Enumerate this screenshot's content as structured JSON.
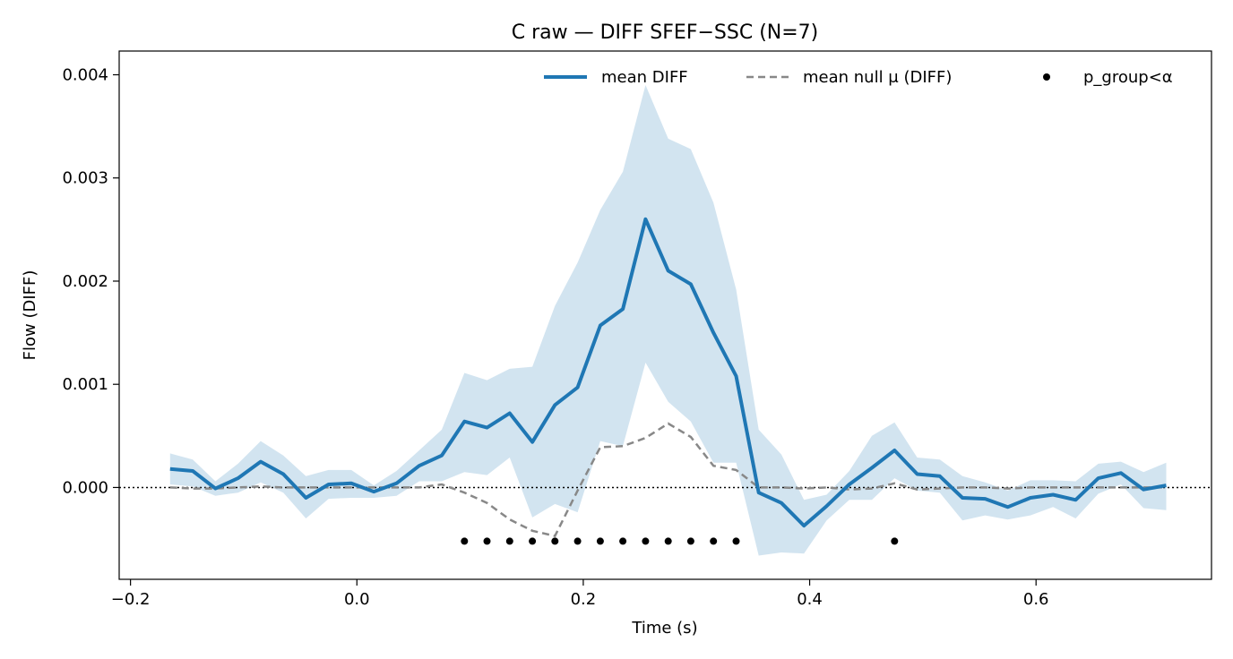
{
  "chart_data": {
    "type": "line",
    "title": "C raw — DIFF SFEF−SSC (N=7)",
    "xlabel": "Time (s)",
    "ylabel": "Flow (DIFF)",
    "xlim": [
      -0.21,
      0.755
    ],
    "ylim": [
      -0.00089,
      0.00423
    ],
    "x_ticks": [
      -0.2,
      0.0,
      0.2,
      0.4,
      0.6
    ],
    "x_tick_labels": [
      "−0.2",
      "0.0",
      "0.2",
      "0.4",
      "0.6"
    ],
    "y_ticks": [
      0.0,
      0.001,
      0.002,
      0.003,
      0.004
    ],
    "y_tick_labels": [
      "0.000",
      "0.001",
      "0.002",
      "0.003",
      "0.004"
    ],
    "grid": false,
    "legend_position": "top-right",
    "zero_reference_line": 0,
    "colors": {
      "mean": "#1f77b4",
      "band": "#1f77b4",
      "null": "#888888",
      "dots": "#000000"
    },
    "x": [
      -0.165,
      -0.145,
      -0.125,
      -0.105,
      -0.085,
      -0.065,
      -0.045,
      -0.025,
      -0.005,
      0.015,
      0.035,
      0.055,
      0.075,
      0.095,
      0.115,
      0.135,
      0.155,
      0.175,
      0.195,
      0.215,
      0.235,
      0.255,
      0.275,
      0.295,
      0.315,
      0.335,
      0.355,
      0.375,
      0.395,
      0.415,
      0.435,
      0.455,
      0.475,
      0.495,
      0.515,
      0.535,
      0.555,
      0.575,
      0.595,
      0.615,
      0.635,
      0.655,
      0.675,
      0.695,
      0.715
    ],
    "series": [
      {
        "name": "mean DIFF",
        "style": "solid",
        "values": [
          0.00018,
          0.00016,
          -1e-05,
          9e-05,
          0.00025,
          0.00013,
          -0.0001,
          3e-05,
          4e-05,
          -4e-05,
          4e-05,
          0.00021,
          0.00031,
          0.00064,
          0.00058,
          0.00072,
          0.00044,
          0.0008,
          0.00097,
          0.00157,
          0.00173,
          0.0026,
          0.0021,
          0.00197,
          0.0015,
          0.00108,
          -5e-05,
          -0.00015,
          -0.00037,
          -0.00018,
          3e-05,
          0.00019,
          0.00036,
          0.00013,
          0.00011,
          -0.0001,
          -0.00011,
          -0.00019,
          -0.0001,
          -7e-05,
          -0.00012,
          9e-05,
          0.00014,
          -2e-05,
          2e-05
        ],
        "band_upper": [
          0.00033,
          0.00027,
          6e-05,
          0.00023,
          0.00045,
          0.00031,
          0.00011,
          0.00017,
          0.00017,
          2e-05,
          0.00016,
          0.00036,
          0.00056,
          0.00111,
          0.00104,
          0.00115,
          0.00117,
          0.00176,
          0.00218,
          0.00269,
          0.00306,
          0.0039,
          0.00338,
          0.00328,
          0.00276,
          0.00192,
          0.00056,
          0.00032,
          -0.00012,
          -7e-05,
          0.00016,
          0.0005,
          0.00063,
          0.00029,
          0.00027,
          0.00011,
          5e-05,
          -3e-05,
          7e-05,
          7e-05,
          6e-05,
          0.00023,
          0.00025,
          0.00015,
          0.00024
        ],
        "band_lower": [
          3e-05,
          1e-05,
          -8e-05,
          -5e-05,
          5e-05,
          -5e-05,
          -0.0003,
          -0.00011,
          -0.0001,
          -0.0001,
          -8e-05,
          6e-05,
          6e-05,
          0.00015,
          0.00012,
          0.00029,
          -0.00029,
          -0.00016,
          -0.00024,
          0.00045,
          0.0004,
          0.00121,
          0.00083,
          0.00064,
          0.00024,
          0.00024,
          -0.00066,
          -0.00063,
          -0.00064,
          -0.00032,
          -0.00012,
          -0.00012,
          9e-05,
          -3e-05,
          -5e-05,
          -0.00032,
          -0.00027,
          -0.00031,
          -0.00027,
          -0.00019,
          -0.0003,
          -6e-05,
          3e-05,
          -0.0002,
          -0.00022
        ]
      },
      {
        "name": "mean null μ (DIFF)",
        "style": "dashed",
        "values": [
          0.0,
          -1e-05,
          -1e-05,
          0.0,
          1e-05,
          0.0,
          0.0,
          0.0,
          0.0,
          0.0,
          0.0,
          0.0,
          3e-05,
          -5e-05,
          -0.00015,
          -0.00031,
          -0.00042,
          -0.00047,
          -3e-05,
          0.00039,
          0.0004,
          0.00048,
          0.00062,
          0.00049,
          0.00021,
          0.00017,
          0.0,
          0.0,
          -1e-05,
          0.0,
          -2e-05,
          -1e-05,
          4e-05,
          -2e-05,
          -1e-05,
          0.0,
          0.0,
          -1e-05,
          0.0,
          0.0,
          0.0,
          0.0,
          0.0,
          0.0,
          0.0
        ]
      }
    ],
    "significance": {
      "name": "p_group<α",
      "y": -0.00052,
      "x": [
        0.095,
        0.115,
        0.135,
        0.155,
        0.175,
        0.195,
        0.215,
        0.235,
        0.255,
        0.275,
        0.295,
        0.315,
        0.335,
        0.475
      ]
    }
  }
}
